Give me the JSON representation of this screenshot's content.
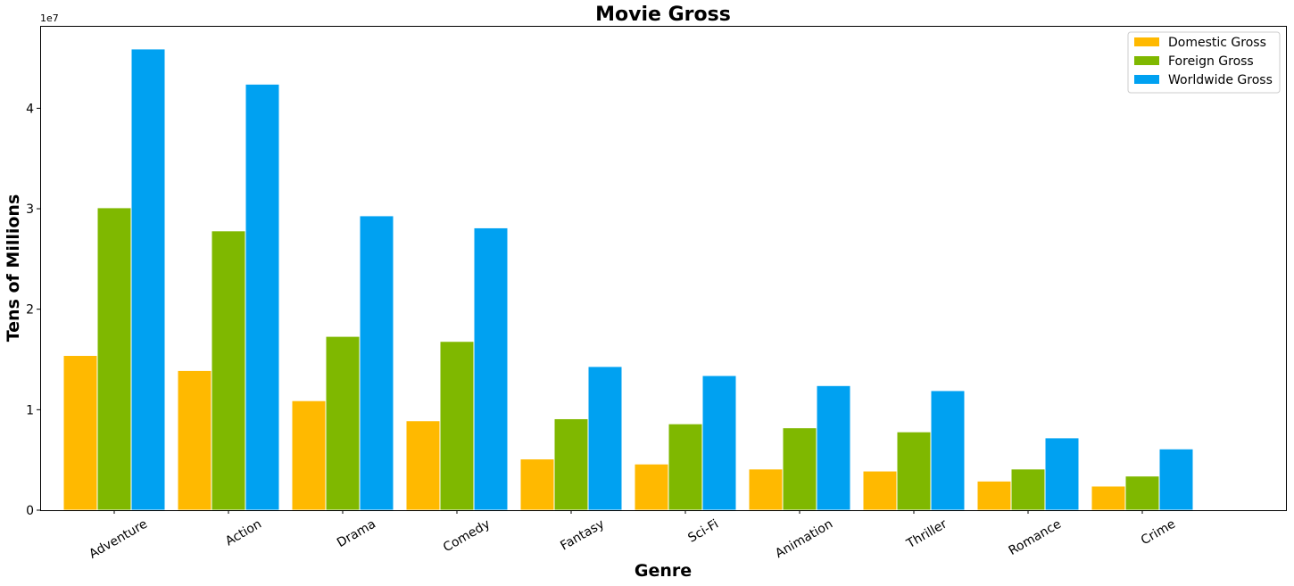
{
  "chart_data": {
    "type": "bar",
    "title": "Movie Gross",
    "xlabel": "Genre",
    "ylabel": "Tens of Millions",
    "y_offset_label": "1e7",
    "categories": [
      "Adventure",
      "Action",
      "Drama",
      "Comedy",
      "Fantasy",
      "Sci-Fi",
      "Animation",
      "Thriller",
      "Romance",
      "Crime"
    ],
    "series": [
      {
        "name": "Domestic Gross",
        "color": "#FFB900",
        "values": [
          15400000,
          13900000,
          10900000,
          8900000,
          5100000,
          4600000,
          4100000,
          3900000,
          2900000,
          2400000
        ]
      },
      {
        "name": "Foreign Gross",
        "color": "#7FB800",
        "values": [
          30100000,
          27800000,
          17300000,
          16800000,
          9100000,
          8600000,
          8200000,
          7800000,
          4100000,
          3400000
        ]
      },
      {
        "name": "Worldwide Gross",
        "color": "#00A1F1",
        "values": [
          45900000,
          42400000,
          29300000,
          28100000,
          14300000,
          13400000,
          12400000,
          11900000,
          7200000,
          6100000
        ]
      }
    ],
    "ylim": [
      0,
      48200000
    ],
    "yticks": [
      0,
      10000000,
      20000000,
      30000000,
      40000000
    ],
    "ytick_labels": [
      "0",
      "1",
      "2",
      "3",
      "4"
    ],
    "xtick_rotation": -30,
    "legend_position": "top-right",
    "grid": false
  }
}
